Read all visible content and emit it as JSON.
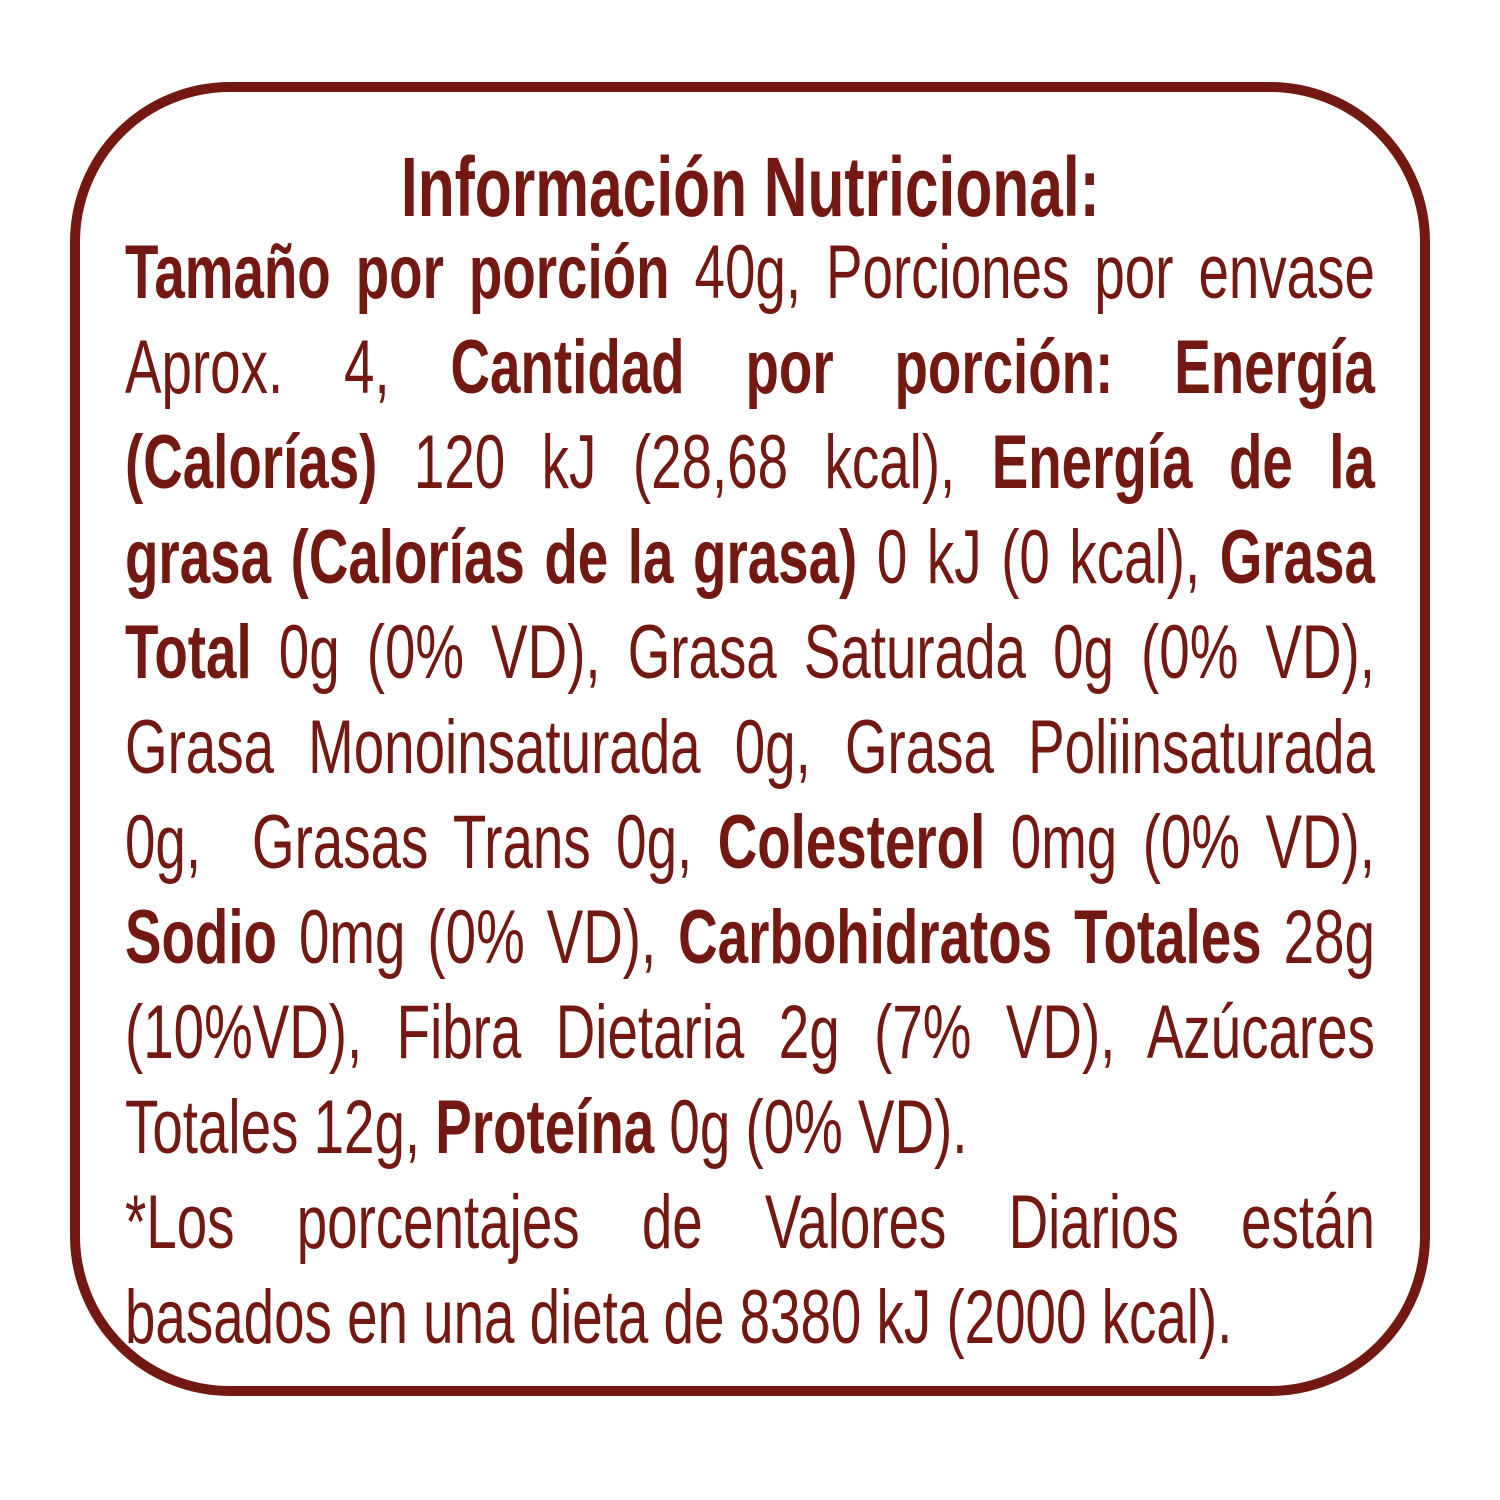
{
  "colors": {
    "text": "#731912",
    "border": "#731912",
    "background": "#ffffff"
  },
  "title": "Información Nutricional:",
  "lines": [
    {
      "segments": [
        {
          "text": "Tamaño por porción",
          "bold": true
        },
        {
          "text": " 40g, Porciones por envase",
          "bold": false
        }
      ]
    },
    {
      "segments": [
        {
          "text": "Aprox. 4, ",
          "bold": false
        },
        {
          "text": "Cantidad por porción: Energía",
          "bold": true
        }
      ]
    },
    {
      "segments": [
        {
          "text": "(Calorías)",
          "bold": true
        },
        {
          "text": " 120 kJ (28,68 kcal), ",
          "bold": false
        },
        {
          "text": "Energía de la",
          "bold": true
        }
      ]
    },
    {
      "segments": [
        {
          "text": "grasa (Calorías de la grasa)",
          "bold": true
        },
        {
          "text": " 0 kJ (0 kcal), ",
          "bold": false
        },
        {
          "text": "Grasa",
          "bold": true
        }
      ]
    },
    {
      "segments": [
        {
          "text": "Total",
          "bold": true
        },
        {
          "text": " 0g (0% VD), Grasa Saturada 0g (0% VD),",
          "bold": false
        }
      ]
    },
    {
      "segments": [
        {
          "text": "Grasa Monoinsaturada 0g, Grasa Poliinsaturada",
          "bold": false
        }
      ]
    },
    {
      "segments": [
        {
          "text": "0g,  Grasas Trans 0g, ",
          "bold": false
        },
        {
          "text": "Colesterol",
          "bold": true
        },
        {
          "text": " 0mg (0% VD),",
          "bold": false
        }
      ]
    },
    {
      "segments": [
        {
          "text": "Sodio",
          "bold": true
        },
        {
          "text": " 0mg (0% VD), ",
          "bold": false
        },
        {
          "text": "Carbohidratos Totales",
          "bold": true
        },
        {
          "text": " 28g",
          "bold": false
        }
      ]
    },
    {
      "segments": [
        {
          "text": "(10%VD), Fibra Dietaria 2g (7% VD), Azúcares",
          "bold": false
        }
      ]
    },
    {
      "segments": [
        {
          "text": "Totales 12g, ",
          "bold": false
        },
        {
          "text": "Proteína",
          "bold": true
        },
        {
          "text": " 0g (0% VD).",
          "bold": false
        }
      ],
      "last": true
    },
    {
      "segments": [
        {
          "text": "*Los porcentajes de Valores Diarios están",
          "bold": false
        }
      ]
    },
    {
      "segments": [
        {
          "text": "basados en una dieta de 8380 kJ (2000 kcal).",
          "bold": false
        }
      ],
      "last": true
    }
  ]
}
